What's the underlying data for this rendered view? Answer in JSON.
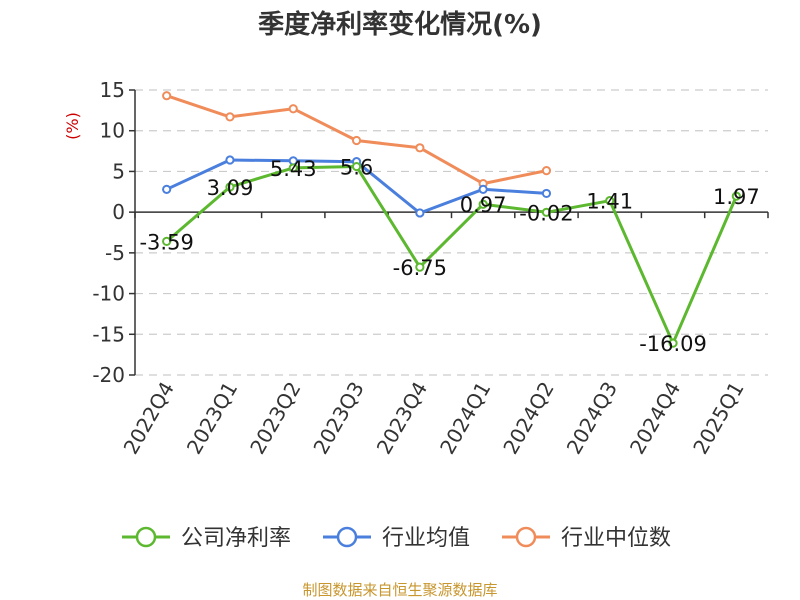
{
  "chart_data": {
    "type": "line",
    "title": "季度净利率变化情况(%)",
    "ylabel": "(%)",
    "categories": [
      "2022Q4",
      "2023Q1",
      "2023Q2",
      "2023Q3",
      "2023Q4",
      "2024Q1",
      "2024Q2",
      "2024Q3",
      "2024Q4",
      "2025Q1"
    ],
    "ylim": [
      -20,
      15
    ],
    "yticks": [
      15,
      10,
      5,
      0,
      -5,
      -10,
      -15,
      -20
    ],
    "grid": true,
    "legend_position": "bottom",
    "series": [
      {
        "name": "公司净利率",
        "color": "#5cb82e",
        "values": [
          -3.59,
          3.09,
          5.43,
          5.6,
          -6.75,
          0.97,
          -0.02,
          1.41,
          -16.09,
          1.97
        ],
        "labels": [
          "-3.59",
          "3.09",
          "5.43",
          "5.6",
          "-6.75",
          "0.97",
          "-0.02",
          "1.41",
          "-16.09",
          "1.97"
        ]
      },
      {
        "name": "行业均值",
        "color": "#4a7fde",
        "values": [
          2.8,
          6.4,
          6.3,
          6.2,
          -0.1,
          2.8,
          2.3,
          null,
          null,
          null
        ]
      },
      {
        "name": "行业中位数",
        "color": "#f08c5a",
        "values": [
          14.3,
          11.7,
          12.7,
          8.8,
          7.9,
          3.5,
          5.1,
          null,
          null,
          null
        ]
      }
    ]
  },
  "footer": {
    "source": "制图数据来自恒生聚源数据库"
  }
}
